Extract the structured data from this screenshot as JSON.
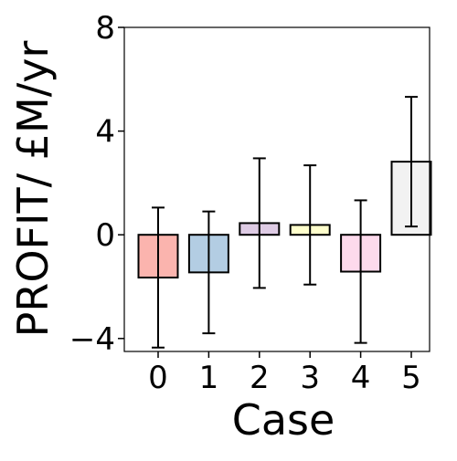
{
  "chart_data": {
    "type": "bar",
    "title": "",
    "xlabel": "Case",
    "ylabel": "PROFIT/ £M/yr",
    "categories": [
      "0",
      "1",
      "2",
      "3",
      "4",
      "5"
    ],
    "values": [
      -1.65,
      -1.45,
      0.45,
      0.38,
      -1.42,
      2.82
    ],
    "error": [
      2.7,
      2.35,
      2.5,
      2.3,
      2.75,
      2.5
    ],
    "colors": [
      "#fbb4ae",
      "#b3cde3",
      "#decbe4",
      "#ffffcc",
      "#fddaec",
      "#f2f2f2"
    ],
    "ylim": [
      -4.5,
      8
    ],
    "yticks": [
      -4,
      0,
      4,
      8
    ],
    "ytick_labels": [
      "−4",
      "0",
      "4",
      "8"
    ],
    "grid": false,
    "legend": "none"
  }
}
